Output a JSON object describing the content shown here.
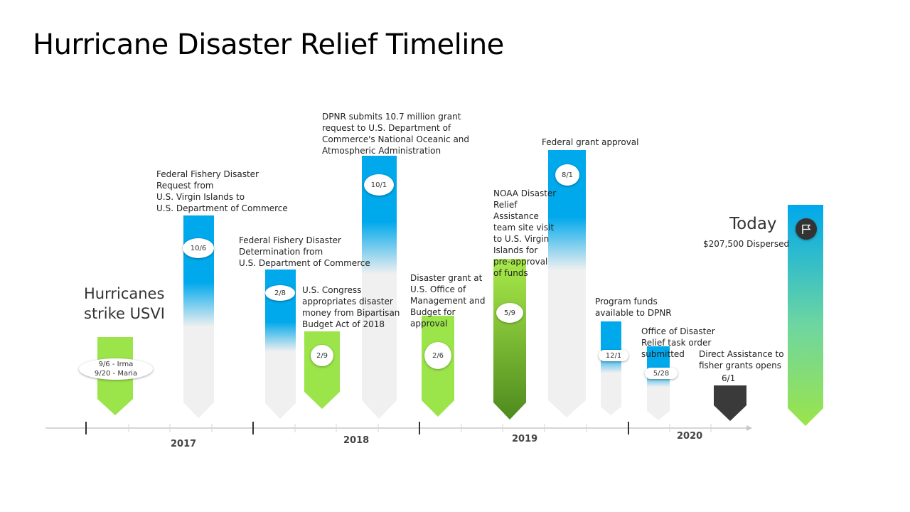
{
  "title": "Hurricane Disaster Relief Timeline",
  "events": {
    "hurricanes_title": "Hurricanes\nstrike USVI",
    "hurricanes_dates": [
      "9/6 - Irma",
      "9/20 - Maria"
    ],
    "e1_date": "10/6",
    "e1_text": "Federal Fishery Disaster\nRequest from\nU.S. Virgin Islands to\nU.S. Department of Commerce",
    "e2_date": "2/8",
    "e2_text": "Federal Fishery Disaster\nDetermination from\nU.S. Department of Commerce",
    "e3_date": "2/9",
    "e3_text": "U.S. Congress\nappropriates disaster\nmoney from Bipartisan\nBudget Act of 2018",
    "e4_date": "10/1",
    "e4_text": "DPNR submits 10.7 million grant\nrequest to U.S. Department of\nCommerce's National Oceanic and\nAtmospheric Administration",
    "e5_date": "2/6",
    "e5_text": "Disaster grant at\nU.S. Office of\nManagement and\nBudget for\napproval",
    "e6_date": "5/9",
    "e6_text": "NOAA Disaster\nRelief\nAssistance\nteam site visit\nto U.S. Virgin\nIslands for\npre-approval\nof funds",
    "e7_date": "8/1",
    "e7_text": "Federal grant approval",
    "e8_date": "12/1",
    "e8_text": "Program funds\navailable to DPNR",
    "e9_date": "5/28",
    "e9_text": "Office of Disaster\nRelief task order\nsubmitted",
    "e10_date": "6/1",
    "e10_text": "Direct Assistance to\nfisher grants opens",
    "today_title": "Today",
    "today_text": "$207,500 Dispersed"
  },
  "years": [
    "2017",
    "2018",
    "2019",
    "2020"
  ],
  "icons": {
    "today_marker": "flag-icon"
  },
  "colors": {
    "blue": "#00a8ec",
    "green": "#9be44a",
    "dark_green": "#5a8f22",
    "gray": "#f0f0f0",
    "dark": "#3a3a3a"
  }
}
